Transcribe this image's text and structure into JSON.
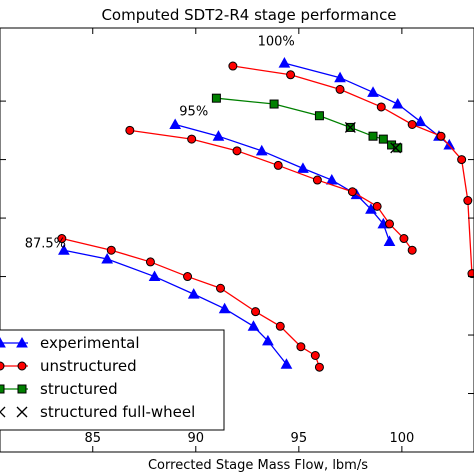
{
  "chart_data": {
    "type": "line",
    "title": "Computed SDT2-R4 stage performance",
    "xlabel": "Corrected Stage Mass Flow, lbm/s",
    "ylabel": "",
    "xlim": [
      80.5,
      103.5
    ],
    "ylim": [
      0,
      14.5
    ],
    "xticks": [
      85,
      90,
      95,
      100
    ],
    "yticks": [
      2,
      4,
      6,
      8,
      10,
      12
    ],
    "grid": false,
    "legend_position": "lower-left",
    "annotations": [
      {
        "text": "100%",
        "x": 93.0,
        "y": 13.9
      },
      {
        "text": "95%",
        "x": 89.2,
        "y": 11.5
      },
      {
        "text": "87.5%",
        "x": 81.7,
        "y": 7.0
      }
    ],
    "series": [
      {
        "name": "experimental",
        "color": "#0000ff",
        "marker": "triangle",
        "lines": [
          {
            "x": [
              94.3,
              97.0,
              98.6,
              99.8,
              100.9,
              101.8,
              102.3
            ],
            "y": [
              13.3,
              12.8,
              12.3,
              11.9,
              11.3,
              10.8,
              10.5
            ]
          },
          {
            "x": [
              89.0,
              91.1,
              93.2,
              95.2,
              96.6,
              97.8,
              98.5,
              99.1,
              99.4
            ],
            "y": [
              11.2,
              10.8,
              10.3,
              9.7,
              9.3,
              8.8,
              8.3,
              7.8,
              7.2
            ]
          },
          {
            "x": [
              83.6,
              85.7,
              88.0,
              89.9,
              91.4,
              92.8,
              93.5,
              94.4
            ],
            "y": [
              6.9,
              6.6,
              6.0,
              5.4,
              4.9,
              4.3,
              3.8,
              3.0
            ]
          }
        ]
      },
      {
        "name": "unstructured",
        "color": "#ff0000",
        "marker": "circle",
        "lines": [
          {
            "x": [
              91.8,
              94.6,
              97.0,
              99.0,
              100.5,
              101.9,
              102.9,
              103.2,
              103.4
            ],
            "y": [
              13.2,
              12.9,
              12.4,
              11.8,
              11.2,
              10.8,
              10.0,
              8.6,
              6.1
            ]
          },
          {
            "x": [
              86.8,
              89.8,
              92.0,
              94.0,
              95.9,
              97.6,
              98.8,
              99.4,
              100.1,
              100.5
            ],
            "y": [
              11.0,
              10.7,
              10.3,
              9.8,
              9.3,
              8.9,
              8.4,
              7.8,
              7.3,
              6.9
            ]
          },
          {
            "x": [
              83.5,
              85.9,
              87.8,
              89.6,
              91.2,
              92.9,
              94.1,
              95.1,
              95.8,
              96.0
            ],
            "y": [
              7.3,
              6.9,
              6.5,
              6.0,
              5.6,
              4.8,
              4.3,
              3.6,
              3.3,
              2.9
            ]
          }
        ]
      },
      {
        "name": "structured",
        "color": "#008000",
        "marker": "square",
        "lines": [
          {
            "x": [
              91.0,
              93.8,
              96.0,
              97.5,
              98.6,
              99.1,
              99.5,
              99.8
            ],
            "y": [
              12.1,
              11.9,
              11.5,
              11.1,
              10.8,
              10.7,
              10.5,
              10.4
            ]
          }
        ]
      },
      {
        "name": "structured full-wheel",
        "color": "#000000",
        "marker": "x",
        "lines": [
          {
            "x": [
              97.5,
              99.7
            ],
            "y": [
              11.1,
              10.4
            ]
          }
        ]
      }
    ]
  }
}
